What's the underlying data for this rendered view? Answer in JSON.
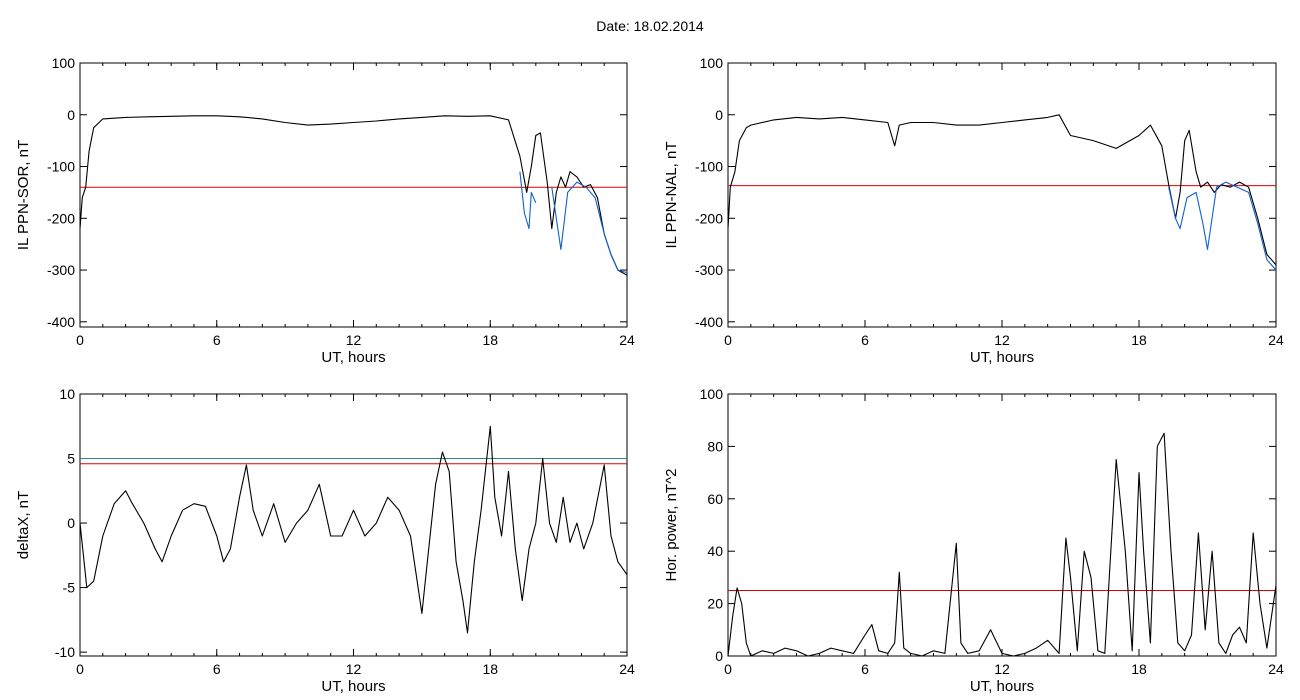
{
  "header": {
    "date_label": "Date:  18.02.2014"
  },
  "colors": {
    "line": "#000000",
    "threshold": "#dd0000",
    "threshold2": "#2a8a8a",
    "blue": "#1060d0",
    "green": "#22bb22",
    "red_marker": "#dd0000",
    "blue_marker": "#1060d0"
  },
  "chart_data": [
    {
      "type": "line",
      "xlabel": "UT, hours",
      "ylabel": "IL PPN-SOR, nT",
      "xlim": [
        0,
        24
      ],
      "ylim": [
        -410,
        100
      ],
      "xticks": [
        "0",
        "6",
        "12",
        "18",
        "24"
      ],
      "yticks": [
        "100",
        "0",
        "-100",
        "-200",
        "-300",
        "-400"
      ],
      "threshold": -140,
      "series": [
        {
          "x": [
            0,
            0.1,
            0.25,
            0.4,
            0.6,
            1,
            2,
            3,
            4,
            5,
            6,
            7,
            8,
            9,
            10,
            11,
            12,
            13,
            14,
            15,
            16,
            17,
            18,
            18.8,
            19.3,
            19.6,
            19.8,
            20,
            20.2,
            20.5,
            20.7,
            20.9,
            21.1,
            21.3,
            21.5,
            21.8,
            22.1,
            22.4,
            22.7,
            23,
            23.3,
            23.6,
            24
          ],
          "y": [
            -220,
            -160,
            -140,
            -70,
            -25,
            -8,
            -5,
            -4,
            -3,
            -2,
            -2,
            -4,
            -8,
            -15,
            -20,
            -18,
            -15,
            -12,
            -8,
            -5,
            -2,
            -3,
            -2,
            -10,
            -80,
            -150,
            -100,
            -40,
            -35,
            -130,
            -220,
            -150,
            -120,
            -140,
            -110,
            -120,
            -140,
            -135,
            -160,
            -230,
            -270,
            -300,
            -310
          ]
        },
        {
          "x": [
            19.3,
            19.5,
            19.7,
            19.8,
            20.0
          ],
          "y": [
            -110,
            -190,
            -220,
            -150,
            -170
          ],
          "color": "blue"
        },
        {
          "x": [
            20.7,
            20.9,
            21.1,
            21.4,
            21.8,
            22.2,
            22.6,
            23.0,
            23.3,
            23.6,
            24
          ],
          "y": [
            -140,
            -200,
            -260,
            -150,
            -130,
            -140,
            -160,
            -230,
            -270,
            -300,
            -305
          ],
          "color": "blue"
        }
      ]
    },
    {
      "type": "line",
      "xlabel": "UT, hours",
      "ylabel": "IL PPN-NAL, nT",
      "xlim": [
        0,
        24
      ],
      "ylim": [
        -410,
        100
      ],
      "xticks": [
        "0",
        "6",
        "12",
        "18",
        "24"
      ],
      "yticks": [
        "100",
        "0",
        "-100",
        "-200",
        "-300",
        "-400"
      ],
      "threshold": -137,
      "series": [
        {
          "x": [
            0,
            0.1,
            0.3,
            0.5,
            0.8,
            1,
            2,
            3,
            4,
            5,
            6,
            7,
            7.3,
            7.5,
            8,
            9,
            10,
            11,
            12,
            13,
            14,
            14.5,
            15,
            16,
            17,
            18,
            18.5,
            19,
            19.3,
            19.6,
            19.8,
            20,
            20.2,
            20.5,
            20.7,
            21,
            21.3,
            21.6,
            22,
            22.4,
            22.8,
            23.2,
            23.6,
            24
          ],
          "y": [
            -220,
            -140,
            -110,
            -50,
            -25,
            -20,
            -10,
            -5,
            -8,
            -5,
            -10,
            -15,
            -60,
            -20,
            -15,
            -15,
            -20,
            -20,
            -15,
            -10,
            -5,
            0,
            -40,
            -50,
            -65,
            -40,
            -20,
            -60,
            -135,
            -200,
            -150,
            -50,
            -30,
            -110,
            -140,
            -130,
            -150,
            -135,
            -140,
            -130,
            -140,
            -200,
            -270,
            -290
          ]
        },
        {
          "x": [
            19.3,
            19.6,
            19.8,
            20.1,
            20.5,
            20.8,
            21.0,
            21.4,
            21.8,
            22.3,
            22.8,
            23.2,
            23.6,
            24
          ],
          "y": [
            -140,
            -200,
            -220,
            -160,
            -150,
            -210,
            -260,
            -140,
            -130,
            -140,
            -150,
            -210,
            -280,
            -300
          ],
          "color": "blue"
        }
      ]
    },
    {
      "type": "line",
      "xlabel": "UT, hours",
      "ylabel": "deltaX, nT",
      "xlim": [
        0,
        24
      ],
      "ylim": [
        -10.3,
        10
      ],
      "xticks": [
        "0",
        "6",
        "12",
        "18",
        "24"
      ],
      "yticks": [
        "10",
        "5",
        "0",
        "-5",
        "-10"
      ],
      "threshold": 4.6,
      "threshold2": 5.0,
      "series": [
        {
          "x": [
            0,
            0.3,
            0.6,
            1,
            1.5,
            2,
            2.3,
            2.8,
            3.3,
            3.6,
            4,
            4.5,
            5,
            5.5,
            6,
            6.3,
            6.6,
            7,
            7.3,
            7.6,
            8,
            8.5,
            9,
            9.5,
            10,
            10.5,
            11,
            11.5,
            12,
            12.5,
            13,
            13.5,
            14,
            14.5,
            15,
            15.3,
            15.6,
            15.9,
            16.2,
            16.5,
            16.8,
            17,
            17.3,
            17.6,
            18,
            18.2,
            18.5,
            18.8,
            19.1,
            19.4,
            19.7,
            20,
            20.3,
            20.6,
            20.9,
            21.2,
            21.5,
            21.8,
            22.1,
            22.5,
            23,
            23.3,
            23.6,
            24
          ],
          "y": [
            0,
            -5,
            -4.5,
            -1,
            1.5,
            2.5,
            1.5,
            0,
            -2,
            -3,
            -1,
            1,
            1.5,
            1.3,
            -1,
            -3,
            -2,
            2,
            4.5,
            1,
            -1,
            1.5,
            -1.5,
            0,
            1,
            3,
            -1,
            -1,
            1,
            -1,
            0,
            2,
            1,
            -1,
            -7,
            -2,
            3,
            5.5,
            4,
            -3,
            -6,
            -8.5,
            -3,
            1,
            7.5,
            2,
            -1,
            4,
            -2,
            -6,
            -2,
            0,
            5,
            0,
            -1.5,
            2,
            -1.5,
            0,
            -2,
            0,
            4.5,
            -1,
            -3,
            -4
          ]
        }
      ]
    },
    {
      "type": "line",
      "xlabel": "UT, hours",
      "ylabel": "Hor. power, nT^2",
      "xlim": [
        0,
        24
      ],
      "ylim": [
        0,
        100
      ],
      "xticks": [
        "0",
        "6",
        "12",
        "18",
        "24"
      ],
      "yticks": [
        "100",
        "80",
        "60",
        "40",
        "20",
        "0"
      ],
      "threshold": 25,
      "series": [
        {
          "x": [
            0,
            0.2,
            0.4,
            0.6,
            0.8,
            1,
            1.5,
            2,
            2.5,
            3,
            3.5,
            4,
            4.5,
            5,
            5.5,
            6,
            6.3,
            6.6,
            7,
            7.3,
            7.5,
            7.7,
            8,
            8.5,
            9,
            9.5,
            10,
            10.2,
            10.5,
            11,
            11.5,
            12,
            12.5,
            13,
            13.5,
            14,
            14.5,
            14.8,
            15,
            15.3,
            15.6,
            15.9,
            16.2,
            16.5,
            17,
            17.4,
            17.7,
            18,
            18.2,
            18.5,
            18.8,
            19.1,
            19.4,
            19.7,
            20,
            20.3,
            20.6,
            20.9,
            21.2,
            21.5,
            21.8,
            22.1,
            22.4,
            22.7,
            23,
            23.3,
            23.6,
            24
          ],
          "y": [
            0,
            15,
            26,
            20,
            5,
            0,
            2,
            1,
            3,
            2,
            0,
            1,
            3,
            2,
            1,
            8,
            12,
            2,
            1,
            5,
            32,
            3,
            1,
            0,
            2,
            1,
            43,
            5,
            1,
            2,
            10,
            1,
            0,
            1,
            3,
            6,
            1,
            45,
            30,
            2,
            40,
            30,
            2,
            1,
            75,
            40,
            2,
            70,
            40,
            5,
            80,
            85,
            40,
            5,
            2,
            8,
            47,
            10,
            40,
            5,
            1,
            8,
            11,
            5,
            47,
            20,
            3,
            27
          ]
        }
      ]
    }
  ]
}
